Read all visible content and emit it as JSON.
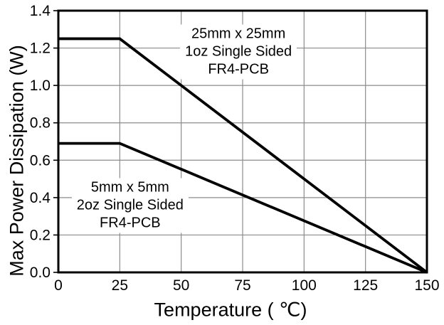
{
  "chart_data": {
    "type": "line",
    "title": "",
    "xlabel": "Temperature ( ℃)",
    "ylabel": "Max Power Dissipation (W)",
    "xlim": [
      0,
      150
    ],
    "ylim": [
      0,
      1.4
    ],
    "x_ticks": [
      0,
      25,
      50,
      75,
      100,
      125,
      150
    ],
    "x_tick_labels": [
      "0",
      "25",
      "50",
      "75",
      "100",
      "125",
      "150"
    ],
    "y_ticks": [
      0.0,
      0.2,
      0.4,
      0.6,
      0.8,
      1.0,
      1.2,
      1.4
    ],
    "y_tick_labels": [
      "0.0",
      "0.2",
      "0.4",
      "0.6",
      "0.8",
      "1.0",
      "1.2",
      "1.4"
    ],
    "grid": true,
    "legend_position": "none",
    "colors": {
      "line": "#000000",
      "grid": "#8c8c8c",
      "frame": "#000000",
      "background": "#ffffff",
      "text": "#000000"
    },
    "series": [
      {
        "name": "25mm x 25mm 1oz Single Sided FR4-PCB",
        "points": [
          [
            0,
            1.25
          ],
          [
            25,
            1.25
          ],
          [
            150,
            0
          ]
        ]
      },
      {
        "name": "5mm x 5mm 2oz Single Sided FR4-PCB",
        "points": [
          [
            0,
            0.69
          ],
          [
            25,
            0.69
          ],
          [
            150,
            0
          ]
        ]
      }
    ],
    "annotations": [
      {
        "lines": [
          "25mm x 25mm",
          "1oz Single Sided",
          "FR4-PCB"
        ],
        "x": 73.3,
        "y": 1.18
      },
      {
        "lines": [
          "5mm x 5mm",
          "2oz Single Sided",
          "FR4-PCB"
        ],
        "x": 29.2,
        "y": 0.358
      }
    ]
  }
}
